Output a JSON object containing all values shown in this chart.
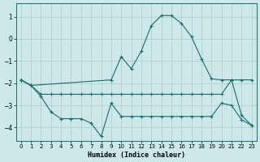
{
  "xlabel": "Humidex (Indice chaleur)",
  "bg_color": "#cce8e8",
  "grid_color": "#aacccc",
  "line_color": "#1a6b6b",
  "xlim": [
    -0.5,
    23.5
  ],
  "ylim": [
    -4.6,
    1.6
  ],
  "yticks": [
    -4,
    -3,
    -2,
    -1,
    0,
    1
  ],
  "xticks": [
    0,
    1,
    2,
    3,
    4,
    5,
    6,
    7,
    8,
    9,
    10,
    11,
    12,
    13,
    14,
    15,
    16,
    17,
    18,
    19,
    20,
    21,
    22,
    23
  ],
  "series1_x": [
    0,
    1,
    2,
    3,
    4,
    5,
    6,
    7,
    8,
    9,
    10,
    11,
    12,
    13,
    14,
    15,
    16,
    17,
    18,
    19,
    20,
    21,
    22,
    23
  ],
  "series1_y": [
    -1.85,
    -2.1,
    -2.5,
    -2.5,
    -2.5,
    -2.5,
    -2.5,
    -2.5,
    -2.5,
    -2.5,
    -2.5,
    -2.5,
    -2.5,
    -2.5,
    -2.5,
    -2.5,
    -2.5,
    -2.5,
    -2.5,
    -2.5,
    -2.5,
    -1.85,
    -1.85,
    -1.85
  ],
  "series2_x": [
    0,
    1,
    2,
    3,
    4,
    5,
    6,
    7,
    8,
    9,
    10,
    11,
    12,
    13,
    14,
    15,
    16,
    17,
    18,
    19,
    20,
    21,
    22,
    23
  ],
  "series2_y": [
    -1.85,
    -2.1,
    -2.6,
    -3.3,
    -3.6,
    -3.6,
    -3.6,
    -3.8,
    -4.4,
    -2.9,
    -3.5,
    -3.5,
    -3.5,
    -3.5,
    -3.5,
    -3.5,
    -3.5,
    -3.5,
    -3.5,
    -3.5,
    -2.9,
    -3.0,
    -3.65,
    -3.9
  ],
  "series3_x": [
    0,
    1,
    9,
    10,
    11,
    12,
    13,
    14,
    15,
    16,
    17,
    18,
    19,
    20,
    21,
    22,
    23
  ],
  "series3_y": [
    -1.85,
    -2.1,
    -1.85,
    -0.8,
    -1.35,
    -0.55,
    0.6,
    1.05,
    1.05,
    0.7,
    0.1,
    -0.9,
    -1.8,
    -1.85,
    -1.85,
    -3.45,
    -3.9
  ]
}
